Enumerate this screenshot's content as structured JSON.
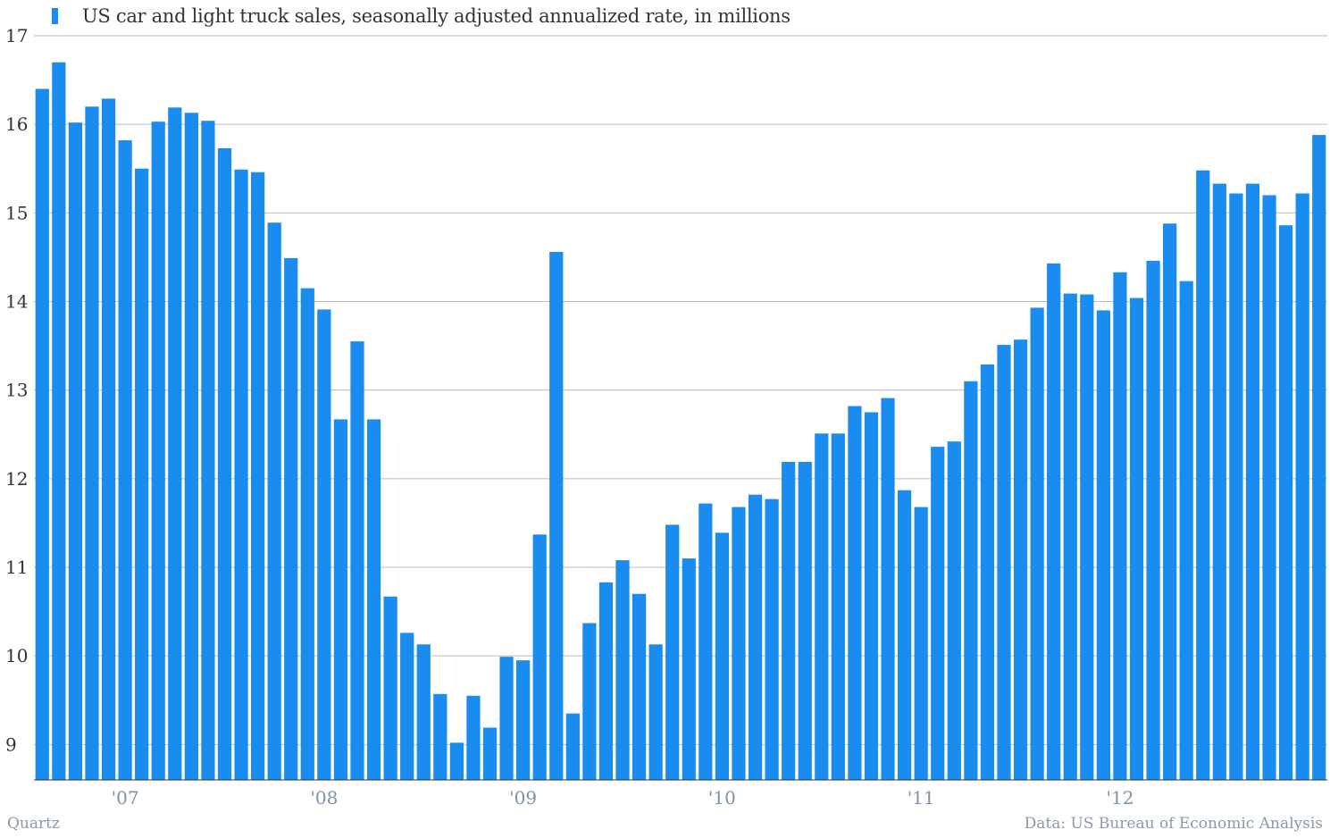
{
  "chart_data": {
    "type": "bar",
    "title": "",
    "xlabel": "",
    "ylabel": "",
    "ylim": [
      8.6,
      17
    ],
    "yticks": [
      9,
      10,
      11,
      12,
      13,
      14,
      15,
      16,
      17
    ],
    "x_tick_labels": [
      {
        "label": "'07",
        "index": 5
      },
      {
        "label": "'08",
        "index": 17
      },
      {
        "label": "'09",
        "index": 29
      },
      {
        "label": "'10",
        "index": 41
      },
      {
        "label": "'11",
        "index": 53
      },
      {
        "label": "'12",
        "index": 65
      }
    ],
    "grid": true,
    "legend_position": "top-left",
    "series": [
      {
        "name": "US car and light truck sales, seasonally adjusted annualized rate, in millions",
        "color": "#1a8cf0",
        "values": [
          16.4,
          16.7,
          16.02,
          16.2,
          16.29,
          15.82,
          15.5,
          16.03,
          16.19,
          16.13,
          16.04,
          15.73,
          15.49,
          15.46,
          14.89,
          14.49,
          14.15,
          13.91,
          12.67,
          13.55,
          12.67,
          10.67,
          10.26,
          10.13,
          9.57,
          9.02,
          9.55,
          9.19,
          9.99,
          9.95,
          11.37,
          14.56,
          9.35,
          10.37,
          10.83,
          11.08,
          10.7,
          10.13,
          11.48,
          11.1,
          11.72,
          11.39,
          11.68,
          11.82,
          11.77,
          12.19,
          12.19,
          12.51,
          12.51,
          12.82,
          12.75,
          12.91,
          11.87,
          11.68,
          12.36,
          12.42,
          13.1,
          13.29,
          13.51,
          13.57,
          13.93,
          14.43,
          14.09,
          14.08,
          13.9,
          14.33,
          14.04,
          14.46,
          14.88,
          14.23,
          15.48,
          15.33,
          15.22,
          15.33,
          15.2,
          14.86,
          15.22,
          15.88
        ]
      }
    ]
  },
  "footer": {
    "source_left": "Quartz",
    "source_right": "Data: US Bureau of Economic Analysis"
  }
}
